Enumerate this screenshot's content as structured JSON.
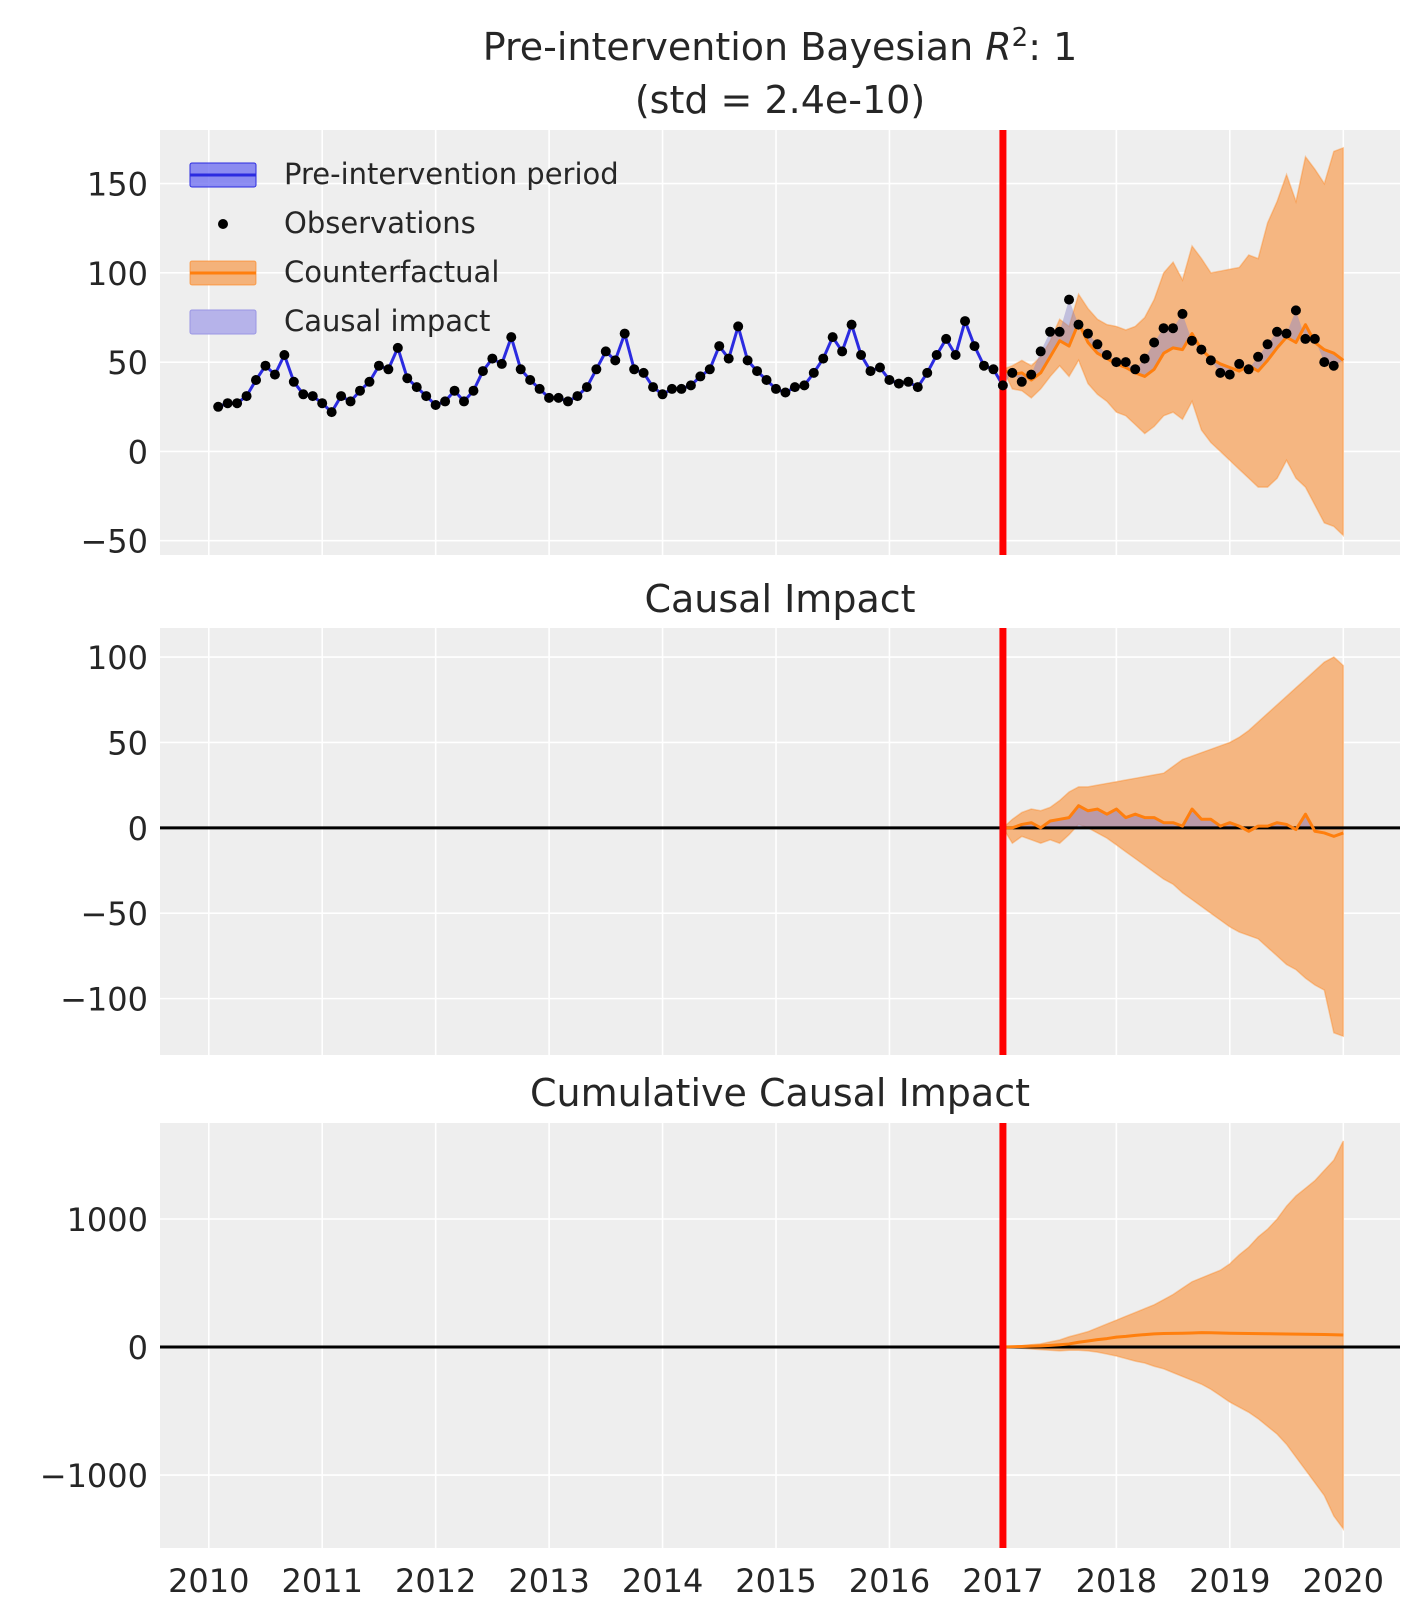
{
  "colors": {
    "background": "#eeeeee",
    "grid": "#ffffff",
    "pre_line": "#2b2be0",
    "pre_fill": "#6a6af0",
    "observations": "#000000",
    "counterfactual": "#ff7f0e",
    "counterfactual_fill": "#f4b27a",
    "impact_fill": "#8a84c8",
    "intervention": "#ff0000",
    "zero_line": "#000000"
  },
  "chart_data": [
    {
      "type": "line",
      "title": "Pre-intervention Bayesian R²: 1",
      "subtitle": "(std = 2.4e-10)",
      "title_main": "Pre-intervention Bayesian ",
      "title_r": "R",
      "title_sup": "2",
      "title_tail": ": 1",
      "xlabel": "",
      "ylabel": "",
      "ylim": [
        -58,
        180
      ],
      "yticks": [
        -50,
        0,
        50,
        100,
        150
      ],
      "yticklabels": [
        "−50",
        "0",
        "50",
        "100",
        "150"
      ],
      "xlim": [
        2009.57,
        2020.5
      ],
      "intervention_x": 2017.0,
      "legend": {
        "placement": "top-left",
        "entries": [
          "Pre-intervention period",
          "Observations",
          "Counterfactual",
          "Causal impact"
        ]
      },
      "observations": {
        "start": 2010.083,
        "step": 0.08333,
        "values": [
          25,
          27,
          27,
          31,
          40,
          48,
          43,
          54,
          39,
          32,
          31,
          27,
          22,
          31,
          28,
          34,
          39,
          48,
          46,
          58,
          41,
          36,
          31,
          26,
          28,
          34,
          28,
          34,
          45,
          52,
          49,
          64,
          46,
          40,
          35,
          30,
          30,
          28,
          31,
          36,
          46,
          56,
          51,
          66,
          46,
          44,
          36,
          32,
          35,
          35,
          37,
          42,
          46,
          59,
          52,
          70,
          51,
          45,
          40,
          35,
          33,
          36,
          37,
          44,
          52,
          64,
          56,
          71,
          54,
          45,
          47,
          40,
          38,
          39,
          36,
          44,
          54,
          63,
          54,
          73,
          59,
          48,
          46,
          37,
          44,
          39,
          43,
          56,
          67,
          67,
          85,
          71,
          66,
          60,
          54,
          50,
          50,
          46,
          52,
          61,
          69,
          69,
          77,
          62,
          57,
          51,
          44,
          43,
          49,
          46,
          53,
          60,
          67,
          66,
          79,
          63,
          63,
          50,
          48
        ]
      },
      "counterfactual": {
        "x": [
          2017.0,
          2017.083,
          2017.167,
          2017.25,
          2017.333,
          2017.417,
          2017.5,
          2017.583,
          2017.667,
          2017.75,
          2017.833,
          2017.917,
          2018.0,
          2018.083,
          2018.167,
          2018.25,
          2018.333,
          2018.417,
          2018.5,
          2018.583,
          2018.667,
          2018.75,
          2018.833,
          2018.917,
          2019.0,
          2019.083,
          2019.167,
          2019.25,
          2019.333,
          2019.417,
          2019.5,
          2019.583,
          2019.667,
          2019.75,
          2019.833,
          2019.917,
          2020.0
        ],
        "mean": [
          46,
          43,
          44,
          40,
          44,
          53,
          62,
          59,
          72,
          61,
          55,
          52,
          49,
          47,
          44,
          42,
          46,
          55,
          58,
          57,
          66,
          57,
          52,
          49,
          47,
          45,
          48,
          45,
          51,
          58,
          64,
          61,
          71,
          61,
          57,
          55,
          51
        ],
        "lower": [
          46,
          35,
          34,
          30,
          35,
          42,
          48,
          42,
          51,
          38,
          32,
          28,
          22,
          20,
          15,
          10,
          14,
          20,
          22,
          18,
          28,
          12,
          5,
          0,
          -5,
          -10,
          -15,
          -20,
          -20,
          -15,
          -5,
          -15,
          -20,
          -30,
          -40,
          -42,
          -47
        ],
        "upper": [
          46,
          48,
          51,
          48,
          53,
          62,
          74,
          70,
          88,
          80,
          74,
          71,
          70,
          68,
          70,
          75,
          85,
          100,
          106,
          96,
          115,
          108,
          100,
          101,
          102,
          103,
          110,
          108,
          128,
          140,
          155,
          140,
          165,
          158,
          150,
          168,
          170
        ]
      }
    },
    {
      "type": "area",
      "title": "Causal Impact",
      "xlabel": "",
      "ylabel": "",
      "ylim": [
        -133,
        117
      ],
      "yticks": [
        -100,
        -50,
        0,
        50,
        100
      ],
      "yticklabels": [
        "−100",
        "−50",
        "0",
        "50",
        "100"
      ],
      "xlim": [
        2009.57,
        2020.5
      ],
      "intervention_x": 2017.0,
      "impact": {
        "x": [
          2017.0,
          2017.083,
          2017.167,
          2017.25,
          2017.333,
          2017.417,
          2017.5,
          2017.583,
          2017.667,
          2017.75,
          2017.833,
          2017.917,
          2018.0,
          2018.083,
          2018.167,
          2018.25,
          2018.333,
          2018.417,
          2018.5,
          2018.583,
          2018.667,
          2018.75,
          2018.833,
          2018.917,
          2019.0,
          2019.083,
          2019.167,
          2019.25,
          2019.333,
          2019.417,
          2019.5,
          2019.583,
          2019.667,
          2019.75,
          2019.833,
          2019.917,
          2020.0
        ],
        "mean": [
          0,
          0,
          2,
          3,
          0,
          4,
          5,
          6,
          13,
          10,
          11,
          8,
          11,
          6,
          8,
          6,
          6,
          3,
          3,
          1,
          11,
          5,
          5,
          1,
          3,
          1,
          -2,
          1,
          1,
          3,
          2,
          -1,
          8,
          -2,
          -3,
          -5,
          -3
        ],
        "lower": [
          0,
          -9,
          -5,
          -7,
          -9,
          -7,
          -9,
          -4,
          2,
          0,
          -3,
          -6,
          -10,
          -14,
          -18,
          -22,
          -26,
          -30,
          -33,
          -38,
          -42,
          -46,
          -50,
          -54,
          -58,
          -61,
          -63,
          -65,
          -70,
          -75,
          -80,
          -83,
          -88,
          -92,
          -95,
          -120,
          -122
        ],
        "upper": [
          0,
          5,
          9,
          11,
          10,
          12,
          16,
          21,
          24,
          24,
          25,
          26,
          27,
          28,
          29,
          30,
          31,
          32,
          36,
          40,
          42,
          44,
          46,
          48,
          50,
          53,
          57,
          62,
          67,
          72,
          77,
          82,
          87,
          92,
          97,
          100,
          95
        ]
      }
    },
    {
      "type": "area",
      "title": "Cumulative Causal Impact",
      "xlabel": "",
      "ylabel": "",
      "ylim": [
        -1570,
        1750
      ],
      "yticks": [
        -1000,
        0,
        1000
      ],
      "yticklabels": [
        "−1000",
        "0",
        "1000"
      ],
      "xticks": [
        2010,
        2011,
        2012,
        2013,
        2014,
        2015,
        2016,
        2017,
        2018,
        2019,
        2020
      ],
      "xticklabels": [
        "2010",
        "2011",
        "2012",
        "2013",
        "2014",
        "2015",
        "2016",
        "2017",
        "2018",
        "2019",
        "2020"
      ],
      "xlim": [
        2009.57,
        2020.5
      ],
      "intervention_x": 2017.0,
      "cumulative": {
        "x": [
          2017.0,
          2017.083,
          2017.167,
          2017.25,
          2017.333,
          2017.417,
          2017.5,
          2017.583,
          2017.667,
          2017.75,
          2017.833,
          2017.917,
          2018.0,
          2018.083,
          2018.167,
          2018.25,
          2018.333,
          2018.417,
          2018.5,
          2018.583,
          2018.667,
          2018.75,
          2018.833,
          2018.917,
          2019.0,
          2019.083,
          2019.167,
          2019.25,
          2019.333,
          2019.417,
          2019.5,
          2019.583,
          2019.667,
          2019.75,
          2019.833,
          2019.917,
          2020.0
        ],
        "mean": [
          0,
          2,
          4,
          7,
          9,
          13,
          18,
          24,
          37,
          47,
          58,
          66,
          77,
          83,
          91,
          97,
          103,
          106,
          107,
          108,
          110,
          112,
          111,
          110,
          108,
          107,
          106,
          105,
          104,
          103,
          102,
          101,
          100,
          99,
          98,
          96,
          94
        ],
        "lower": [
          0,
          -5,
          -10,
          -15,
          -20,
          -25,
          -30,
          -25,
          -25,
          -30,
          -40,
          -55,
          -70,
          -90,
          -110,
          -125,
          -150,
          -170,
          -200,
          -230,
          -260,
          -290,
          -330,
          -380,
          -430,
          -470,
          -510,
          -560,
          -620,
          -680,
          -760,
          -860,
          -960,
          -1060,
          -1160,
          -1320,
          -1420
        ],
        "upper": [
          0,
          5,
          10,
          18,
          25,
          40,
          55,
          80,
          100,
          120,
          150,
          180,
          210,
          240,
          270,
          300,
          330,
          370,
          410,
          460,
          510,
          540,
          570,
          600,
          650,
          720,
          780,
          860,
          920,
          1000,
          1100,
          1180,
          1240,
          1300,
          1380,
          1460,
          1610
        ]
      }
    }
  ]
}
